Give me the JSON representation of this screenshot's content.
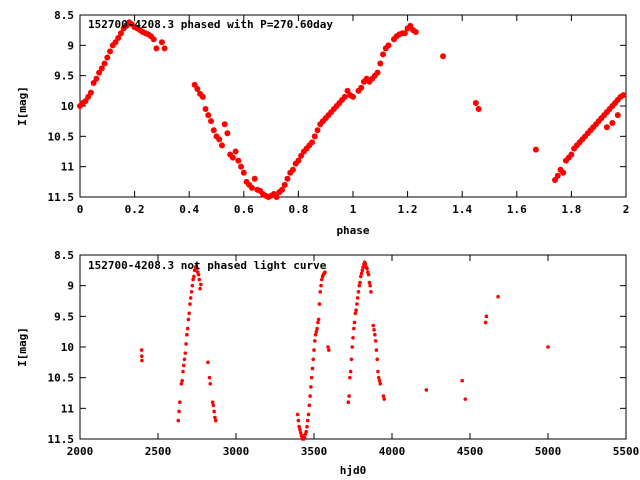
{
  "chart_data": [
    {
      "type": "scatter",
      "title": "152700-4208.3 phased with P=270.60day",
      "xlabel": "phase",
      "ylabel": "I[mag]",
      "xlim": [
        0,
        2
      ],
      "ylim": [
        8.5,
        11.5
      ],
      "y_inverted": true,
      "grid": false,
      "legend": "none",
      "x_ticks": [
        "0",
        "0.2",
        "0.4",
        "0.6",
        "0.8",
        "1",
        "1.2",
        "1.4",
        "1.6",
        "1.8",
        "2"
      ],
      "y_ticks": [
        "8.5",
        "9",
        "9.5",
        "10",
        "10.5",
        "11",
        "11.5"
      ],
      "marker_color": "#ff0000",
      "points": [
        [
          0.0,
          10.0
        ],
        [
          0.01,
          9.95
        ],
        [
          0.02,
          9.92
        ],
        [
          0.03,
          9.85
        ],
        [
          0.04,
          9.78
        ],
        [
          0.05,
          9.62
        ],
        [
          0.06,
          9.55
        ],
        [
          0.07,
          9.45
        ],
        [
          0.08,
          9.38
        ],
        [
          0.09,
          9.3
        ],
        [
          0.1,
          9.2
        ],
        [
          0.11,
          9.1
        ],
        [
          0.12,
          9.0
        ],
        [
          0.13,
          8.95
        ],
        [
          0.14,
          8.88
        ],
        [
          0.15,
          8.8
        ],
        [
          0.16,
          8.72
        ],
        [
          0.17,
          8.68
        ],
        [
          0.18,
          8.62
        ],
        [
          0.19,
          8.65
        ],
        [
          0.2,
          8.7
        ],
        [
          0.21,
          8.72
        ],
        [
          0.22,
          8.75
        ],
        [
          0.23,
          8.78
        ],
        [
          0.24,
          8.8
        ],
        [
          0.25,
          8.82
        ],
        [
          0.26,
          8.85
        ],
        [
          0.27,
          8.9
        ],
        [
          0.28,
          9.05
        ],
        [
          0.3,
          8.95
        ],
        [
          0.31,
          9.05
        ],
        [
          0.42,
          9.65
        ],
        [
          0.43,
          9.72
        ],
        [
          0.44,
          9.8
        ],
        [
          0.45,
          9.85
        ],
        [
          0.46,
          10.05
        ],
        [
          0.47,
          10.15
        ],
        [
          0.48,
          10.25
        ],
        [
          0.49,
          10.4
        ],
        [
          0.5,
          10.5
        ],
        [
          0.51,
          10.55
        ],
        [
          0.52,
          10.65
        ],
        [
          0.53,
          10.3
        ],
        [
          0.54,
          10.45
        ],
        [
          0.55,
          10.8
        ],
        [
          0.56,
          10.85
        ],
        [
          0.57,
          10.75
        ],
        [
          0.58,
          10.9
        ],
        [
          0.59,
          11.0
        ],
        [
          0.6,
          11.1
        ],
        [
          0.61,
          11.25
        ],
        [
          0.62,
          11.3
        ],
        [
          0.63,
          11.35
        ],
        [
          0.64,
          11.2
        ],
        [
          0.65,
          11.38
        ],
        [
          0.66,
          11.4
        ],
        [
          0.67,
          11.45
        ],
        [
          0.68,
          11.48
        ],
        [
          0.69,
          11.5
        ],
        [
          0.7,
          11.48
        ],
        [
          0.71,
          11.45
        ],
        [
          0.72,
          11.5
        ],
        [
          0.73,
          11.42
        ],
        [
          0.74,
          11.38
        ],
        [
          0.75,
          11.3
        ],
        [
          0.76,
          11.2
        ],
        [
          0.77,
          11.1
        ],
        [
          0.78,
          11.05
        ],
        [
          0.79,
          10.95
        ],
        [
          0.8,
          10.9
        ],
        [
          0.81,
          10.82
        ],
        [
          0.82,
          10.75
        ],
        [
          0.83,
          10.7
        ],
        [
          0.84,
          10.65
        ],
        [
          0.85,
          10.6
        ],
        [
          0.86,
          10.5
        ],
        [
          0.87,
          10.4
        ],
        [
          0.88,
          10.3
        ],
        [
          0.89,
          10.25
        ],
        [
          0.9,
          10.2
        ],
        [
          0.91,
          10.15
        ],
        [
          0.92,
          10.1
        ],
        [
          0.93,
          10.05
        ],
        [
          0.94,
          10.0
        ],
        [
          0.95,
          9.95
        ],
        [
          0.96,
          9.9
        ],
        [
          0.97,
          9.85
        ],
        [
          0.98,
          9.75
        ],
        [
          0.99,
          9.82
        ],
        [
          1.0,
          9.85
        ],
        [
          1.02,
          9.75
        ],
        [
          1.03,
          9.7
        ],
        [
          1.04,
          9.6
        ],
        [
          1.05,
          9.55
        ],
        [
          1.06,
          9.6
        ],
        [
          1.07,
          9.55
        ],
        [
          1.08,
          9.5
        ],
        [
          1.09,
          9.45
        ],
        [
          1.1,
          9.3
        ],
        [
          1.11,
          9.15
        ],
        [
          1.12,
          9.05
        ],
        [
          1.13,
          9.0
        ],
        [
          1.15,
          8.9
        ],
        [
          1.16,
          8.85
        ],
        [
          1.17,
          8.82
        ],
        [
          1.18,
          8.8
        ],
        [
          1.19,
          8.8
        ],
        [
          1.2,
          8.72
        ],
        [
          1.21,
          8.68
        ],
        [
          1.22,
          8.75
        ],
        [
          1.23,
          8.78
        ],
        [
          1.33,
          9.18
        ],
        [
          1.45,
          9.95
        ],
        [
          1.46,
          10.05
        ],
        [
          1.67,
          10.72
        ],
        [
          1.74,
          11.22
        ],
        [
          1.75,
          11.15
        ],
        [
          1.76,
          11.05
        ],
        [
          1.77,
          11.1
        ],
        [
          1.78,
          10.9
        ],
        [
          1.79,
          10.85
        ],
        [
          1.8,
          10.8
        ],
        [
          1.81,
          10.7
        ],
        [
          1.82,
          10.65
        ],
        [
          1.83,
          10.6
        ],
        [
          1.84,
          10.55
        ],
        [
          1.85,
          10.5
        ],
        [
          1.86,
          10.45
        ],
        [
          1.87,
          10.4
        ],
        [
          1.88,
          10.35
        ],
        [
          1.89,
          10.3
        ],
        [
          1.9,
          10.25
        ],
        [
          1.91,
          10.2
        ],
        [
          1.92,
          10.15
        ],
        [
          1.93,
          10.1
        ],
        [
          1.94,
          10.05
        ],
        [
          1.95,
          10.0
        ],
        [
          1.96,
          9.95
        ],
        [
          1.97,
          9.9
        ],
        [
          1.98,
          9.85
        ],
        [
          1.99,
          9.82
        ],
        [
          1.93,
          10.35
        ],
        [
          1.95,
          10.28
        ],
        [
          1.97,
          10.15
        ]
      ]
    },
    {
      "type": "scatter",
      "title": "152700-4208.3 not phased light curve",
      "xlabel": "hjd0",
      "ylabel": "I[mag]",
      "xlim": [
        2000,
        5500
      ],
      "ylim": [
        8.5,
        11.5
      ],
      "y_inverted": true,
      "grid": false,
      "legend": "none",
      "x_ticks": [
        "2000",
        "2500",
        "3000",
        "3500",
        "4000",
        "4500",
        "5000",
        "5500"
      ],
      "y_ticks": [
        "8.5",
        "9",
        "9.5",
        "10",
        "10.5",
        "11",
        "11.5"
      ],
      "marker_color": "#ff0000",
      "points": [
        [
          2395,
          10.05
        ],
        [
          2396,
          10.15
        ],
        [
          2397,
          10.22
        ],
        [
          2630,
          11.2
        ],
        [
          2635,
          11.05
        ],
        [
          2640,
          10.9
        ],
        [
          2650,
          10.6
        ],
        [
          2655,
          10.55
        ],
        [
          2660,
          10.4
        ],
        [
          2665,
          10.3
        ],
        [
          2670,
          10.2
        ],
        [
          2675,
          10.1
        ],
        [
          2680,
          9.95
        ],
        [
          2685,
          9.8
        ],
        [
          2690,
          9.7
        ],
        [
          2695,
          9.55
        ],
        [
          2700,
          9.45
        ],
        [
          2705,
          9.3
        ],
        [
          2710,
          9.2
        ],
        [
          2715,
          9.1
        ],
        [
          2720,
          9.0
        ],
        [
          2725,
          8.9
        ],
        [
          2730,
          8.85
        ],
        [
          2735,
          8.75
        ],
        [
          2740,
          8.7
        ],
        [
          2745,
          8.68
        ],
        [
          2750,
          8.72
        ],
        [
          2755,
          8.78
        ],
        [
          2760,
          8.82
        ],
        [
          2765,
          8.9
        ],
        [
          2770,
          9.05
        ],
        [
          2775,
          8.98
        ],
        [
          2820,
          10.25
        ],
        [
          2830,
          10.5
        ],
        [
          2835,
          10.6
        ],
        [
          2850,
          10.9
        ],
        [
          2855,
          10.95
        ],
        [
          2860,
          11.05
        ],
        [
          2865,
          11.15
        ],
        [
          2870,
          11.2
        ],
        [
          3395,
          11.1
        ],
        [
          3400,
          11.2
        ],
        [
          3405,
          11.3
        ],
        [
          3410,
          11.35
        ],
        [
          3415,
          11.4
        ],
        [
          3420,
          11.45
        ],
        [
          3425,
          11.5
        ],
        [
          3430,
          11.45
        ],
        [
          3435,
          11.5
        ],
        [
          3440,
          11.48
        ],
        [
          3445,
          11.42
        ],
        [
          3450,
          11.38
        ],
        [
          3455,
          11.3
        ],
        [
          3460,
          11.2
        ],
        [
          3465,
          11.1
        ],
        [
          3470,
          10.95
        ],
        [
          3475,
          10.8
        ],
        [
          3480,
          10.65
        ],
        [
          3485,
          10.5
        ],
        [
          3490,
          10.35
        ],
        [
          3495,
          10.2
        ],
        [
          3500,
          10.05
        ],
        [
          3505,
          9.9
        ],
        [
          3510,
          9.8
        ],
        [
          3515,
          9.75
        ],
        [
          3520,
          9.7
        ],
        [
          3525,
          9.6
        ],
        [
          3530,
          9.55
        ],
        [
          3535,
          9.3
        ],
        [
          3540,
          9.1
        ],
        [
          3545,
          9.0
        ],
        [
          3550,
          8.9
        ],
        [
          3555,
          8.85
        ],
        [
          3560,
          8.82
        ],
        [
          3565,
          8.8
        ],
        [
          3570,
          8.78
        ],
        [
          3590,
          10.0
        ],
        [
          3595,
          10.05
        ],
        [
          3720,
          10.9
        ],
        [
          3725,
          10.8
        ],
        [
          3730,
          10.5
        ],
        [
          3735,
          10.4
        ],
        [
          3740,
          10.2
        ],
        [
          3745,
          10.0
        ],
        [
          3750,
          9.85
        ],
        [
          3755,
          9.7
        ],
        [
          3760,
          9.6
        ],
        [
          3765,
          9.45
        ],
        [
          3770,
          9.4
        ],
        [
          3775,
          9.3
        ],
        [
          3780,
          9.2
        ],
        [
          3785,
          9.1
        ],
        [
          3790,
          9.0
        ],
        [
          3795,
          8.95
        ],
        [
          3800,
          8.85
        ],
        [
          3805,
          8.8
        ],
        [
          3810,
          8.75
        ],
        [
          3815,
          8.7
        ],
        [
          3820,
          8.65
        ],
        [
          3825,
          8.62
        ],
        [
          3830,
          8.65
        ],
        [
          3835,
          8.7
        ],
        [
          3840,
          8.72
        ],
        [
          3845,
          8.78
        ],
        [
          3850,
          8.82
        ],
        [
          3855,
          8.95
        ],
        [
          3860,
          9.0
        ],
        [
          3865,
          9.1
        ],
        [
          3880,
          9.65
        ],
        [
          3885,
          9.72
        ],
        [
          3890,
          9.8
        ],
        [
          3895,
          9.9
        ],
        [
          3900,
          10.05
        ],
        [
          3905,
          10.2
        ],
        [
          3910,
          10.4
        ],
        [
          3915,
          10.5
        ],
        [
          3920,
          10.55
        ],
        [
          3925,
          10.6
        ],
        [
          3945,
          10.8
        ],
        [
          3950,
          10.85
        ],
        [
          4220,
          10.7
        ],
        [
          4450,
          10.55
        ],
        [
          4470,
          10.85
        ],
        [
          4600,
          9.6
        ],
        [
          4605,
          9.5
        ],
        [
          4680,
          9.18
        ],
        [
          5000,
          10.0
        ]
      ]
    }
  ]
}
